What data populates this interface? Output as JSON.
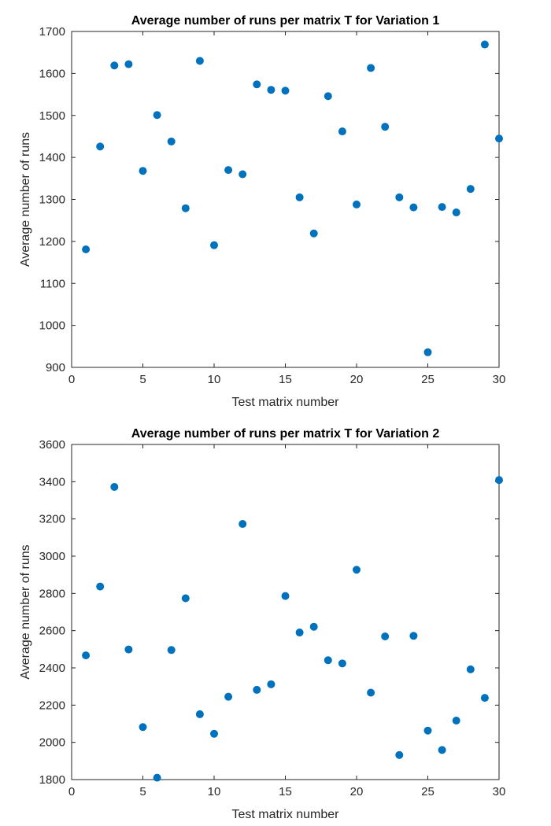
{
  "chart_data": [
    {
      "type": "scatter",
      "title": "Average number of runs per matrix T for Variation 1",
      "xlabel": "Test matrix number",
      "ylabel": "Average number of runs",
      "xlim": [
        0,
        30
      ],
      "ylim": [
        900,
        1700
      ],
      "xticks": [
        0,
        5,
        10,
        15,
        20,
        25,
        30
      ],
      "yticks": [
        900,
        1000,
        1100,
        1200,
        1300,
        1400,
        1500,
        1600,
        1700
      ],
      "grid": false,
      "color": "#0072BD",
      "x": [
        1,
        2,
        3,
        4,
        5,
        6,
        7,
        8,
        9,
        10,
        11,
        12,
        13,
        14,
        15,
        16,
        17,
        18,
        19,
        20,
        21,
        22,
        23,
        24,
        25,
        26,
        27,
        28,
        29,
        30
      ],
      "y": [
        1181,
        1426,
        1619,
        1622,
        1368,
        1501,
        1438,
        1279,
        1630,
        1191,
        1370,
        1360,
        1574,
        1561,
        1559,
        1305,
        1219,
        1546,
        1462,
        1288,
        1613,
        1473,
        1305,
        1281,
        936,
        1282,
        1269,
        1325,
        1669,
        1445
      ]
    },
    {
      "type": "scatter",
      "title": "Average number of runs per matrix T for Variation 2",
      "xlabel": "Test matrix number",
      "ylabel": "Average number of runs",
      "xlim": [
        0,
        30
      ],
      "ylim": [
        1800,
        3600
      ],
      "xticks": [
        0,
        5,
        10,
        15,
        20,
        25,
        30
      ],
      "yticks": [
        1800,
        2000,
        2200,
        2400,
        2600,
        2800,
        3000,
        3200,
        3400,
        3600
      ],
      "grid": false,
      "color": "#0072BD",
      "x": [
        1,
        2,
        3,
        4,
        5,
        6,
        7,
        8,
        9,
        10,
        11,
        12,
        13,
        14,
        15,
        16,
        17,
        18,
        19,
        20,
        21,
        22,
        23,
        24,
        25,
        26,
        27,
        28,
        29,
        30
      ],
      "y": [
        2467,
        2837,
        3372,
        2499,
        2082,
        1810,
        2496,
        2774,
        2151,
        2046,
        2245,
        3173,
        2282,
        2312,
        2786,
        2590,
        2621,
        2441,
        2424,
        2927,
        2267,
        2569,
        1932,
        2572,
        2063,
        1959,
        2117,
        2392,
        2239,
        3409
      ]
    }
  ]
}
